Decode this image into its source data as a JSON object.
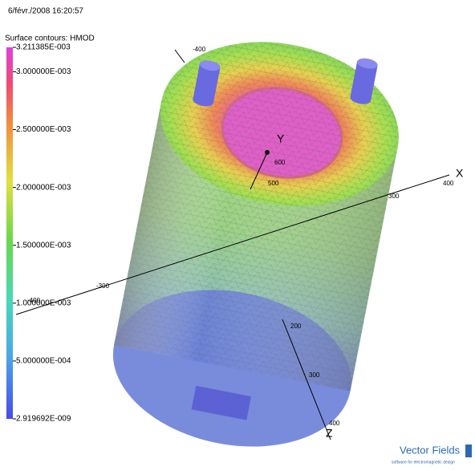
{
  "header": {
    "timestamp": "6/févr./2008 16:20:57"
  },
  "colorbar": {
    "title": "Surface contours: HMOD",
    "min": 2.919692e-09,
    "max": 0.003211385,
    "ticks": [
      {
        "value": 0.003211385,
        "label": "3.211385E-003"
      },
      {
        "value": 0.003,
        "label": "3.000000E-003"
      },
      {
        "value": 0.0025,
        "label": "2.500000E-003"
      },
      {
        "value": 0.002,
        "label": "2.000000E-003"
      },
      {
        "value": 0.0015,
        "label": "1.500000E-003"
      },
      {
        "value": 0.001,
        "label": "1.000000E-003"
      },
      {
        "value": 0.0005,
        "label": "5.000000E-004"
      },
      {
        "value": 2.919692e-09,
        "label": "2.919692E-009"
      }
    ]
  },
  "axes": {
    "y": {
      "name": "Y",
      "labels": [
        "-400",
        "600",
        "500"
      ]
    },
    "x": {
      "name": "X",
      "labels": [
        "400",
        "300",
        "-300",
        "-400"
      ]
    },
    "z": {
      "name": "Z",
      "labels": [
        "200",
        "300",
        "400"
      ]
    }
  },
  "logo": {
    "name": "Vector Fields",
    "tagline": "software for electromagnetic design"
  }
}
